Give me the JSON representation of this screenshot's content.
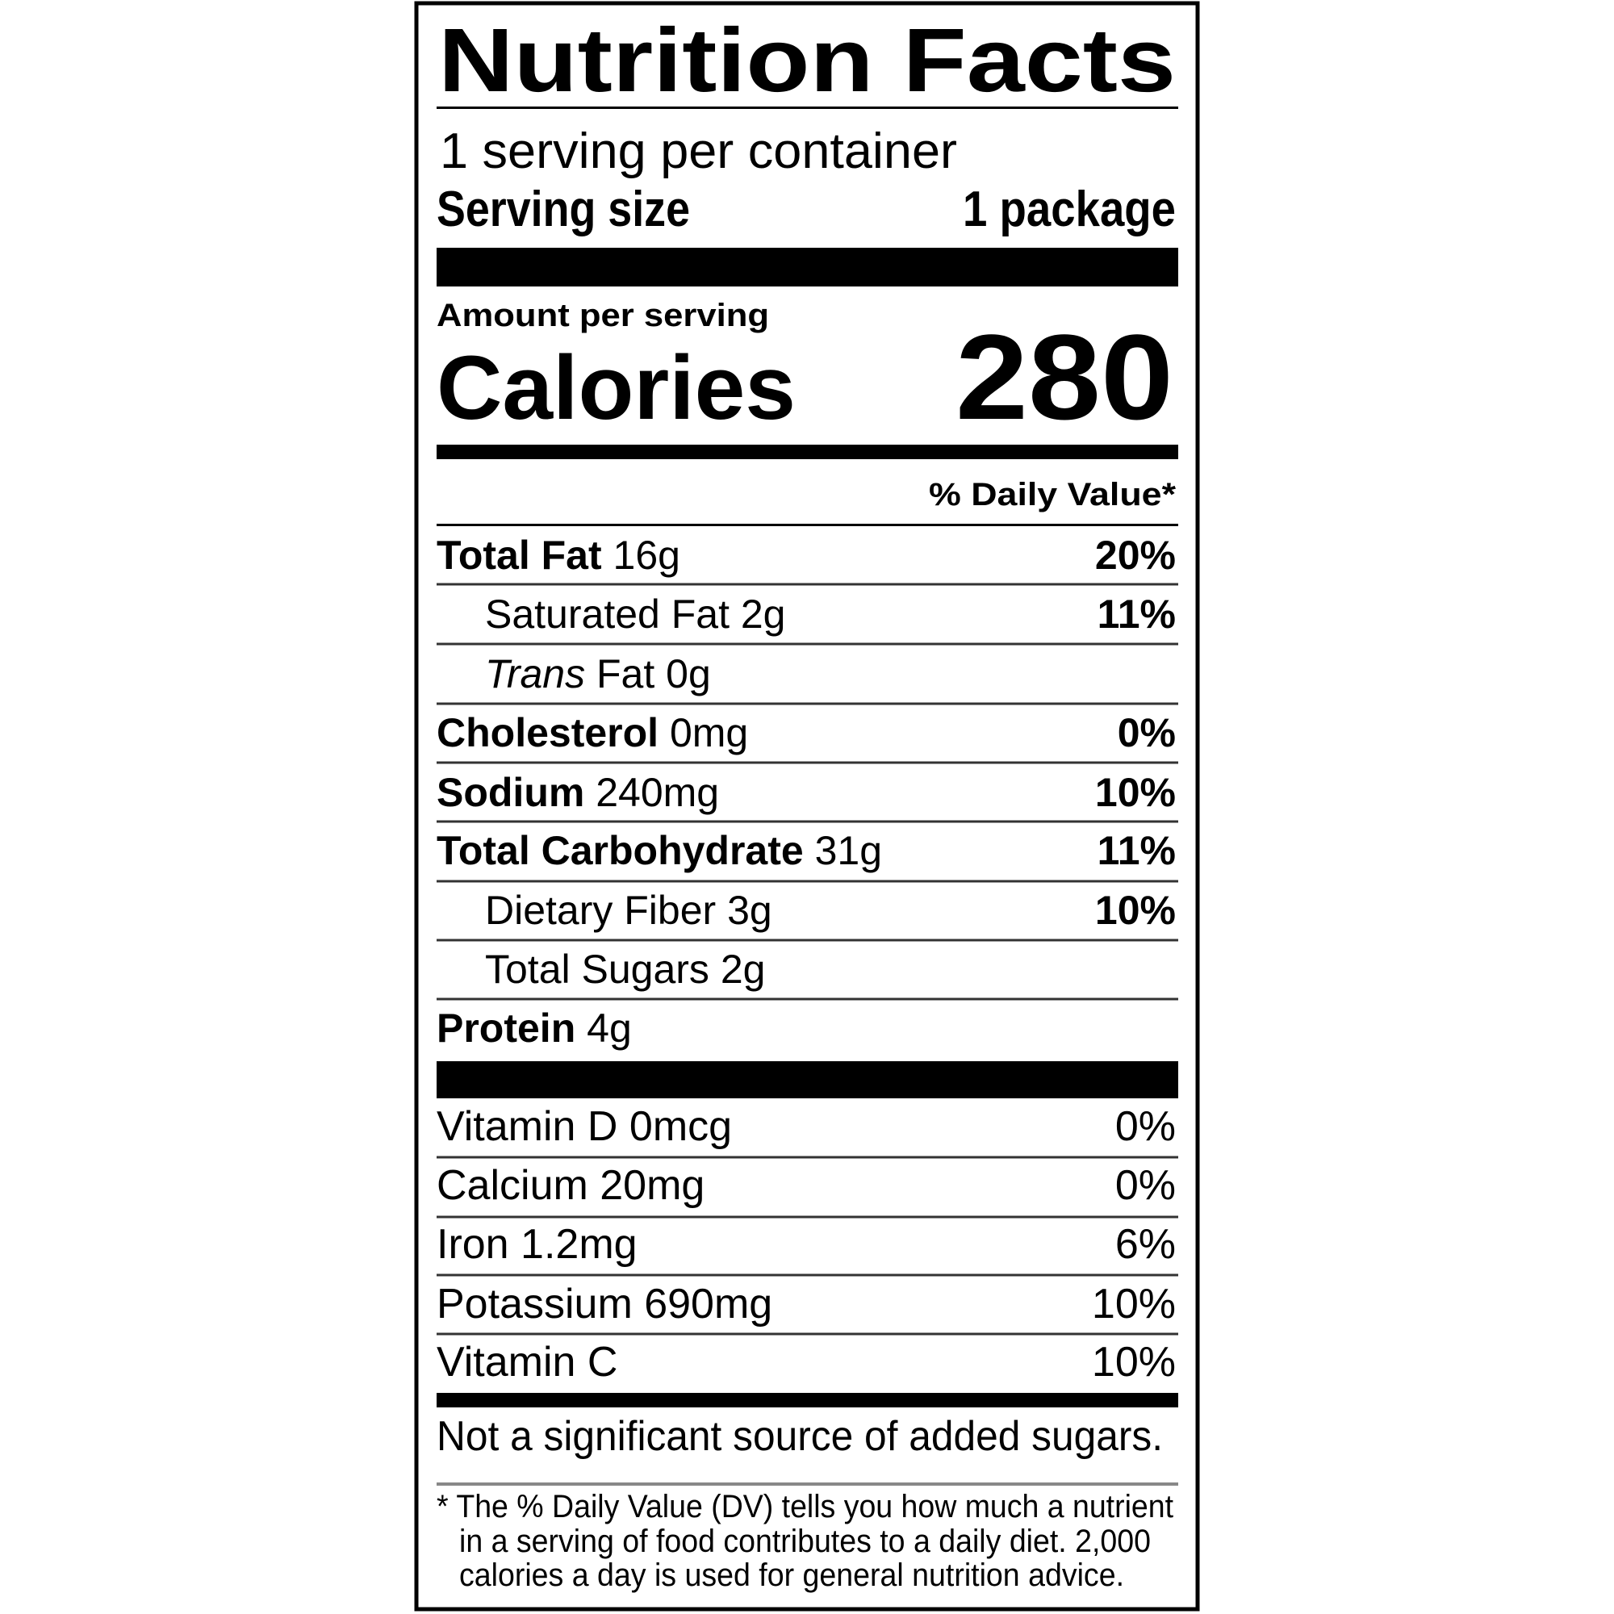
{
  "title": "Nutrition Facts",
  "servings_per_container": "1 serving per container",
  "serving_size_label": "Serving size",
  "serving_size_value": "1 package",
  "amount_per_serving": "Amount per serving",
  "calories_label": "Calories",
  "calories_value": "280",
  "daily_value_header": "% Daily Value*",
  "nutrients": [
    {
      "name": "Total Fat",
      "amount": "16g",
      "dv": "20%",
      "bold": true,
      "indent": false
    },
    {
      "name": "Saturated Fat",
      "amount": "2g",
      "dv": "11%",
      "bold": false,
      "indent": true
    },
    {
      "prefix_italic": "Trans",
      "name": "Fat",
      "amount": "0g",
      "dv": "",
      "bold": false,
      "indent": true
    },
    {
      "name": "Cholesterol",
      "amount": "0mg",
      "dv": "0%",
      "bold": true,
      "indent": false
    },
    {
      "name": "Sodium",
      "amount": "240mg",
      "dv": "10%",
      "bold": true,
      "indent": false
    },
    {
      "name": "Total Carbohydrate",
      "amount": "31g",
      "dv": "11%",
      "bold": true,
      "indent": false
    },
    {
      "name": "Dietary Fiber",
      "amount": "3g",
      "dv": "10%",
      "bold": false,
      "indent": true
    },
    {
      "name": "Total Sugars",
      "amount": "2g",
      "dv": "",
      "bold": false,
      "indent": true
    },
    {
      "name": "Protein",
      "amount": "4g",
      "dv": "",
      "bold": true,
      "indent": false
    }
  ],
  "vitamins": [
    {
      "label": "Vitamin D 0mcg",
      "dv": "0%"
    },
    {
      "label": "Calcium 20mg",
      "dv": "0%"
    },
    {
      "label": "Iron 1.2mg",
      "dv": "6%"
    },
    {
      "label": "Potassium 690mg",
      "dv": "10%"
    },
    {
      "label": "Vitamin C",
      "dv": "10%"
    }
  ],
  "added_sugars_note": "Not a significant source of added sugars.",
  "footnote": [
    "* The % Daily Value (DV) tells you how much a nutrient",
    "in a serving of food contributes to a daily diet. 2,000",
    "calories a day is used for general nutrition advice."
  ]
}
